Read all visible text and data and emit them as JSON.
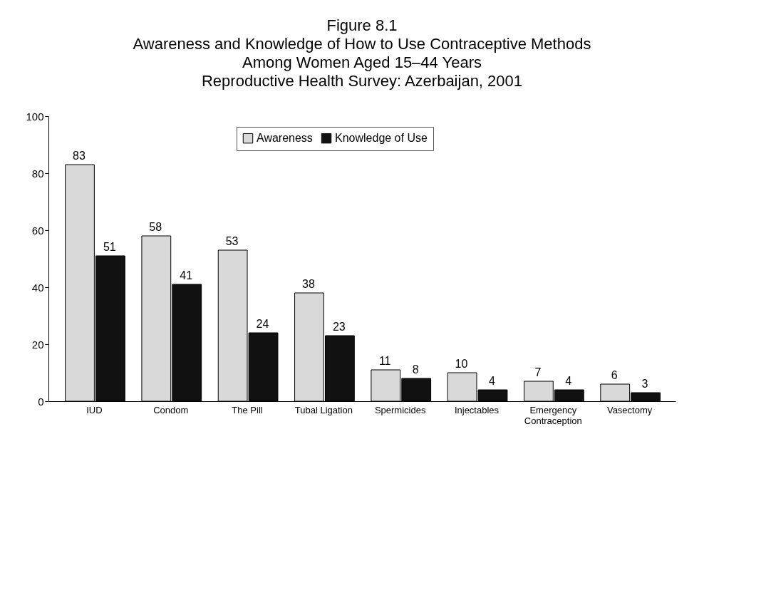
{
  "chart_data": {
    "type": "bar",
    "title": "Figure 8.1\nAwareness and Knowledge of How to Use Contraceptive Methods\nAmong Women Aged 15–44 Years\nReproductive Health Survey: Azerbaijan, 2001",
    "categories": [
      "IUD",
      "Condom",
      "The Pill",
      "Tubal Ligation",
      "Spermicides",
      "Injectables",
      "Emergency Contraception",
      "Vasectomy"
    ],
    "series": [
      {
        "name": "Awareness",
        "color": "#d9d9d9",
        "values": [
          83,
          58,
          53,
          38,
          11,
          10,
          7,
          6
        ]
      },
      {
        "name": "Knowledge of Use",
        "color": "#111111",
        "values": [
          51,
          41,
          24,
          23,
          8,
          4,
          4,
          3
        ]
      }
    ],
    "ylim": [
      0,
      100
    ],
    "yticks": [
      0,
      20,
      40,
      60,
      80,
      100
    ],
    "grid": false,
    "legend": "top",
    "data_labels": true
  }
}
